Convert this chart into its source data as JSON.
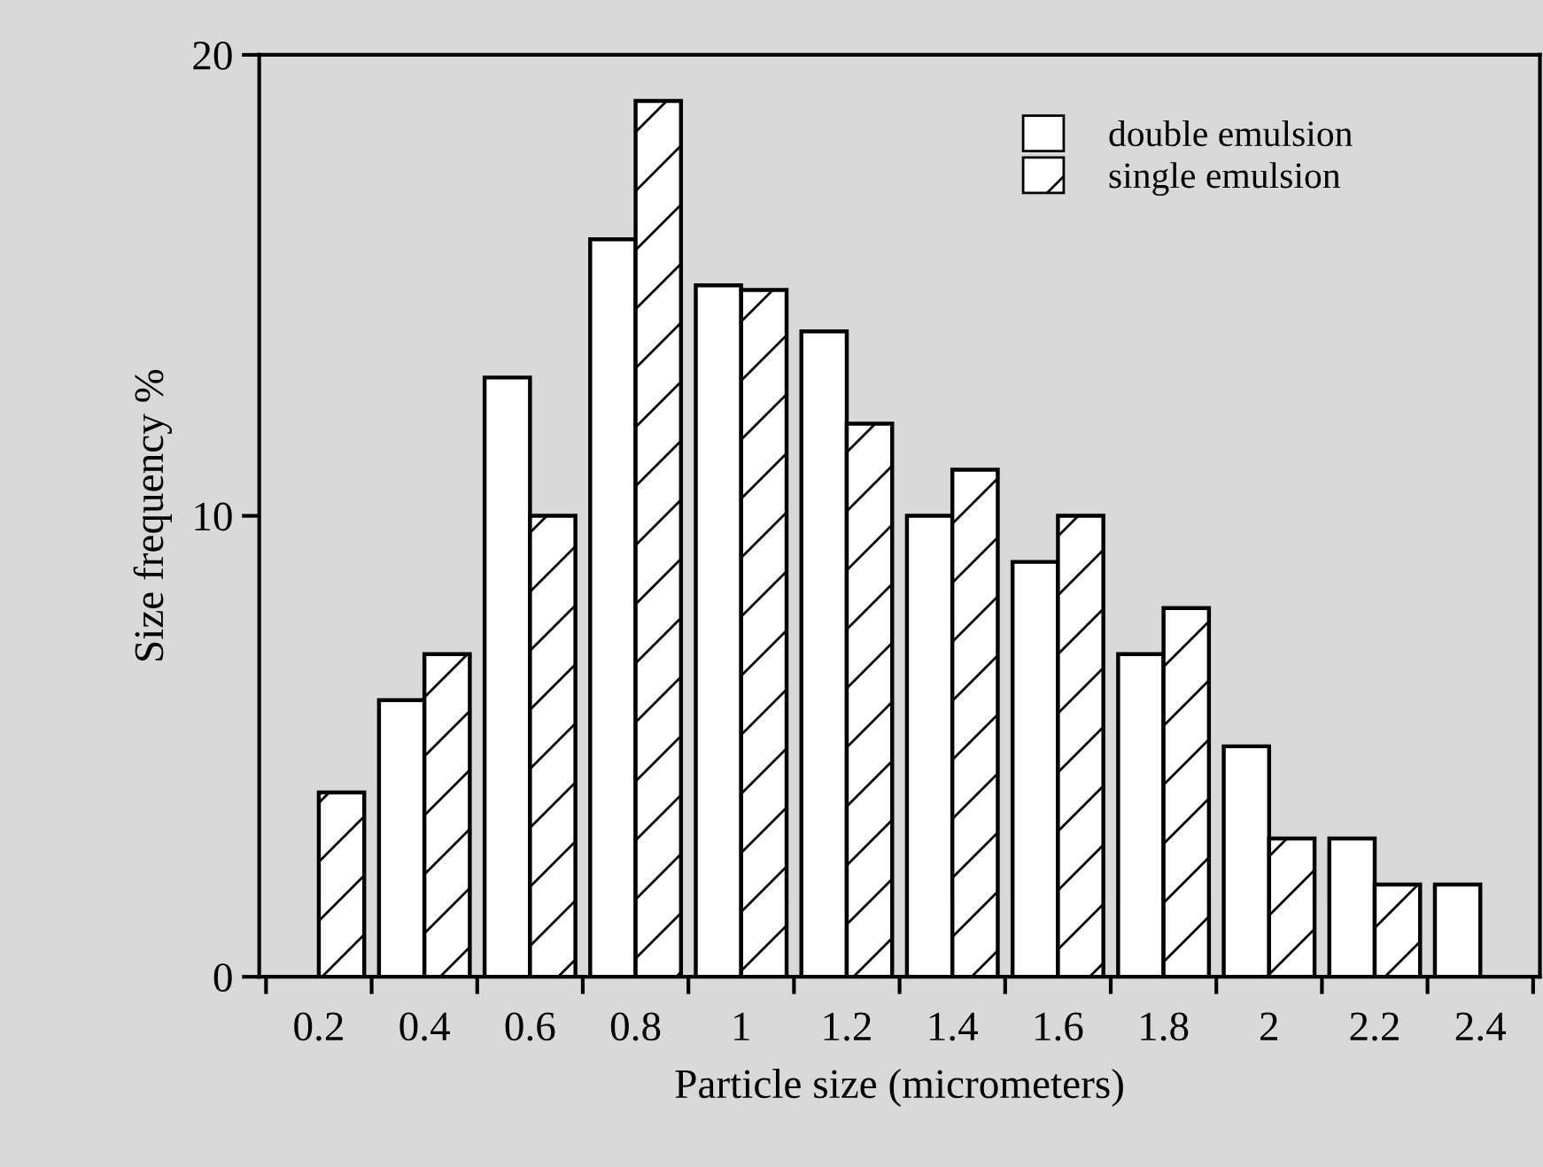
{
  "chart_data": {
    "type": "bar",
    "xlabel": "Particle size (micrometers)",
    "ylabel": "Size frequency %",
    "categories": [
      "0.2",
      "0.4",
      "0.6",
      "0.8",
      "1",
      "1.2",
      "1.4",
      "1.6",
      "1.8",
      "2",
      "2.2",
      "2.4"
    ],
    "series": [
      {
        "name": "double emulsion",
        "color": "#ffffff",
        "values": [
          null,
          6,
          13,
          16,
          15,
          14,
          10,
          9,
          7,
          5,
          3,
          2
        ]
      },
      {
        "name": "single emulsion",
        "color": "#000000",
        "values": [
          4,
          7,
          10,
          19,
          14.9,
          12,
          11,
          10,
          8,
          3,
          2,
          null
        ]
      }
    ],
    "ylim": [
      0,
      20
    ],
    "yticks": [
      0,
      10,
      20
    ],
    "grid": false,
    "legend": "top right"
  }
}
